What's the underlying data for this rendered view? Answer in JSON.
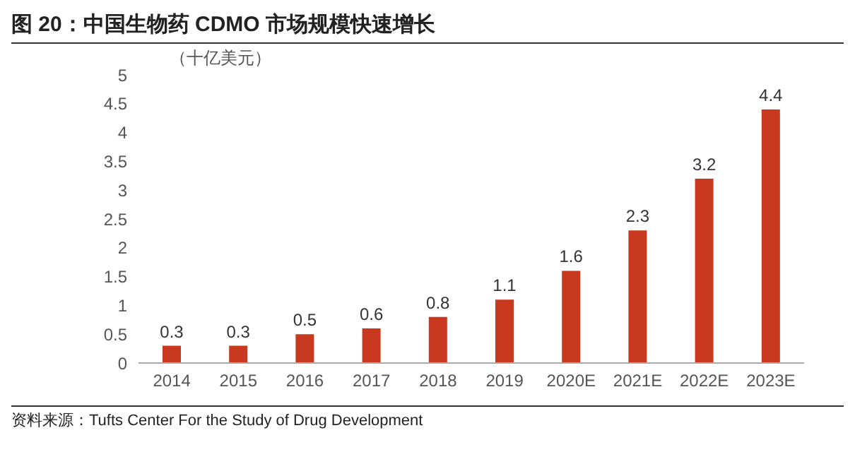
{
  "chart_data": {
    "type": "bar",
    "title": "图 20：中国生物药 CDMO 市场规模快速增长",
    "ylabel": "（十亿美元）",
    "categories": [
      "2014",
      "2015",
      "2016",
      "2017",
      "2018",
      "2019",
      "2020E",
      "2021E",
      "2022E",
      "2023E"
    ],
    "values": [
      0.3,
      0.3,
      0.5,
      0.6,
      0.8,
      1.1,
      1.6,
      2.3,
      3.2,
      4.4
    ],
    "color": "#c8391f",
    "ylim": [
      0,
      5
    ],
    "yticks": [
      0,
      0.5,
      1,
      1.5,
      2,
      2.5,
      3,
      3.5,
      4,
      4.5,
      5
    ],
    "data_labels": true,
    "annotations": [
      "资料来源：Tufts Center For the Study of Drug Development"
    ]
  }
}
